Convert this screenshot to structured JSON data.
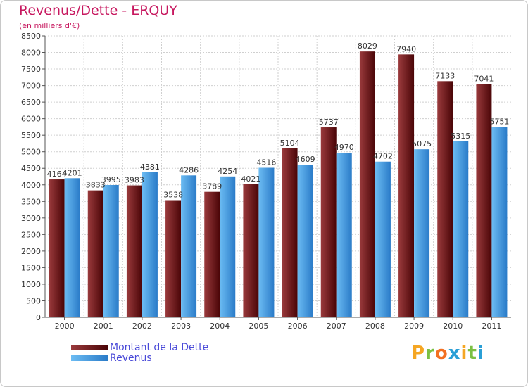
{
  "chart_data": {
    "type": "bar",
    "title": "Revenus/Dette - ERQUY",
    "subtitle": "(en milliers d'€)",
    "categories": [
      "2000",
      "2001",
      "2002",
      "2003",
      "2004",
      "2005",
      "2006",
      "2007",
      "2008",
      "2009",
      "2010",
      "2011"
    ],
    "series": [
      {
        "name": "Montant de la Dette",
        "color": "#7a1a1c",
        "values": [
          4164,
          3833,
          3983,
          3538,
          3789,
          4021,
          5104,
          5737,
          8029,
          7940,
          7133,
          7041
        ]
      },
      {
        "name": "Revenus",
        "color": "#4a9fe0",
        "values": [
          4201,
          3995,
          4381,
          4286,
          4254,
          4516,
          4609,
          4970,
          4702,
          5075,
          5315,
          5751
        ]
      }
    ],
    "ylim": [
      0,
      8500
    ],
    "ytick_step": 500,
    "grid": true,
    "legend_position": "bottom-left"
  },
  "logo": {
    "text": "Proxiti",
    "letter_colors": [
      "#f5a623",
      "#7bc043",
      "#f37021",
      "#2a9fd6",
      "#f5a623",
      "#7bc043",
      "#2a9fd6"
    ]
  }
}
